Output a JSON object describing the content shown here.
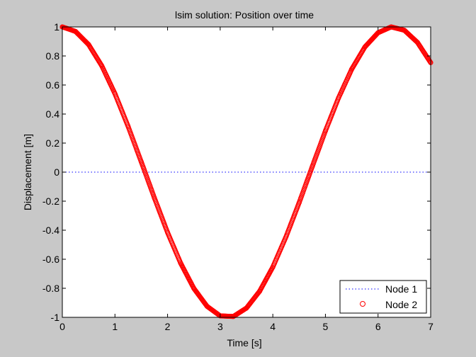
{
  "figure": {
    "background": "#c8c8c8",
    "axes_background": "#ffffff"
  },
  "chart_data": {
    "type": "line",
    "title": "lsim solution: Position over time",
    "xlabel": "Time [s]",
    "ylabel": "Displacement [m]",
    "xlim": [
      0,
      7
    ],
    "ylim": [
      -1,
      1
    ],
    "xticks": [
      "0",
      "1",
      "2",
      "3",
      "4",
      "5",
      "6",
      "7"
    ],
    "yticks": [
      "1",
      "0.8",
      "0.6",
      "0.4",
      "0.2",
      "0",
      "-0.2",
      "-0.4",
      "-0.6",
      "-0.8",
      "-1"
    ],
    "grid": false,
    "legend_position": "bottom-right",
    "series": [
      {
        "name": "Node 1",
        "style": "dotted",
        "marker": "none",
        "color": "#0000ff",
        "x": [
          0,
          7
        ],
        "y": [
          0,
          0
        ]
      },
      {
        "name": "Node 2",
        "style": "none",
        "marker": "circle",
        "color": "#ff0000",
        "x": [
          0.0,
          0.25,
          0.5,
          0.75,
          1.0,
          1.25,
          1.5,
          1.75,
          2.0,
          2.25,
          2.5,
          2.75,
          3.0,
          3.25,
          3.5,
          3.75,
          4.0,
          4.25,
          4.5,
          4.75,
          5.0,
          5.25,
          5.5,
          5.75,
          6.0,
          6.25,
          6.5,
          6.75,
          7.0
        ],
        "y": [
          1.0,
          0.969,
          0.878,
          0.732,
          0.54,
          0.315,
          0.071,
          -0.178,
          -0.416,
          -0.628,
          -0.801,
          -0.924,
          -0.99,
          -0.994,
          -0.936,
          -0.82,
          -0.654,
          -0.446,
          -0.211,
          0.038,
          0.284,
          0.512,
          0.709,
          0.862,
          0.96,
          1.0,
          0.977,
          0.893,
          0.754
        ]
      }
    ]
  }
}
